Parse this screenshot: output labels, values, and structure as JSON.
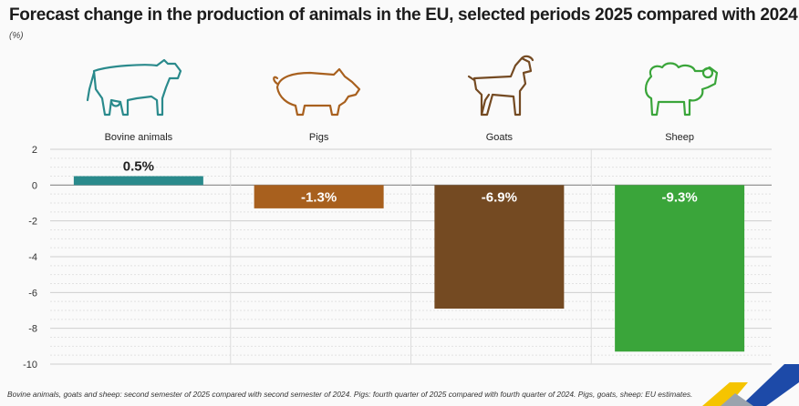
{
  "header": {
    "title": "Forecast change in the production of animals in the EU, selected periods 2025 compared with 2024",
    "unit": "(%)"
  },
  "footnote": "Bovine animals, goats and sheep: second semester of 2025 compared with second semester of 2024. Pigs: fourth quarter of 2025 compared with fourth quarter of 2024. Pigs, goats, sheep: EU estimates.",
  "chart_data": {
    "type": "bar",
    "title": "Forecast change in the production of animals in the EU, selected periods 2025 compared with 2024",
    "ylabel": "(%)",
    "xlabel": "",
    "ylim": [
      -10,
      2
    ],
    "yticks": [
      2,
      0,
      -2,
      -4,
      -6,
      -8,
      -10
    ],
    "grid": true,
    "categories": [
      "Bovine animals",
      "Pigs",
      "Goats",
      "Sheep"
    ],
    "values": [
      0.5,
      -1.3,
      -6.9,
      -9.3
    ],
    "data_labels": [
      "0.5%",
      "-1.3%",
      "-6.9%",
      "-9.3%"
    ],
    "colors": [
      "#2a8a8c",
      "#a8601e",
      "#744a22",
      "#3aa53a"
    ],
    "icons": [
      "cow-icon",
      "pig-icon",
      "goat-icon",
      "sheep-icon"
    ]
  }
}
